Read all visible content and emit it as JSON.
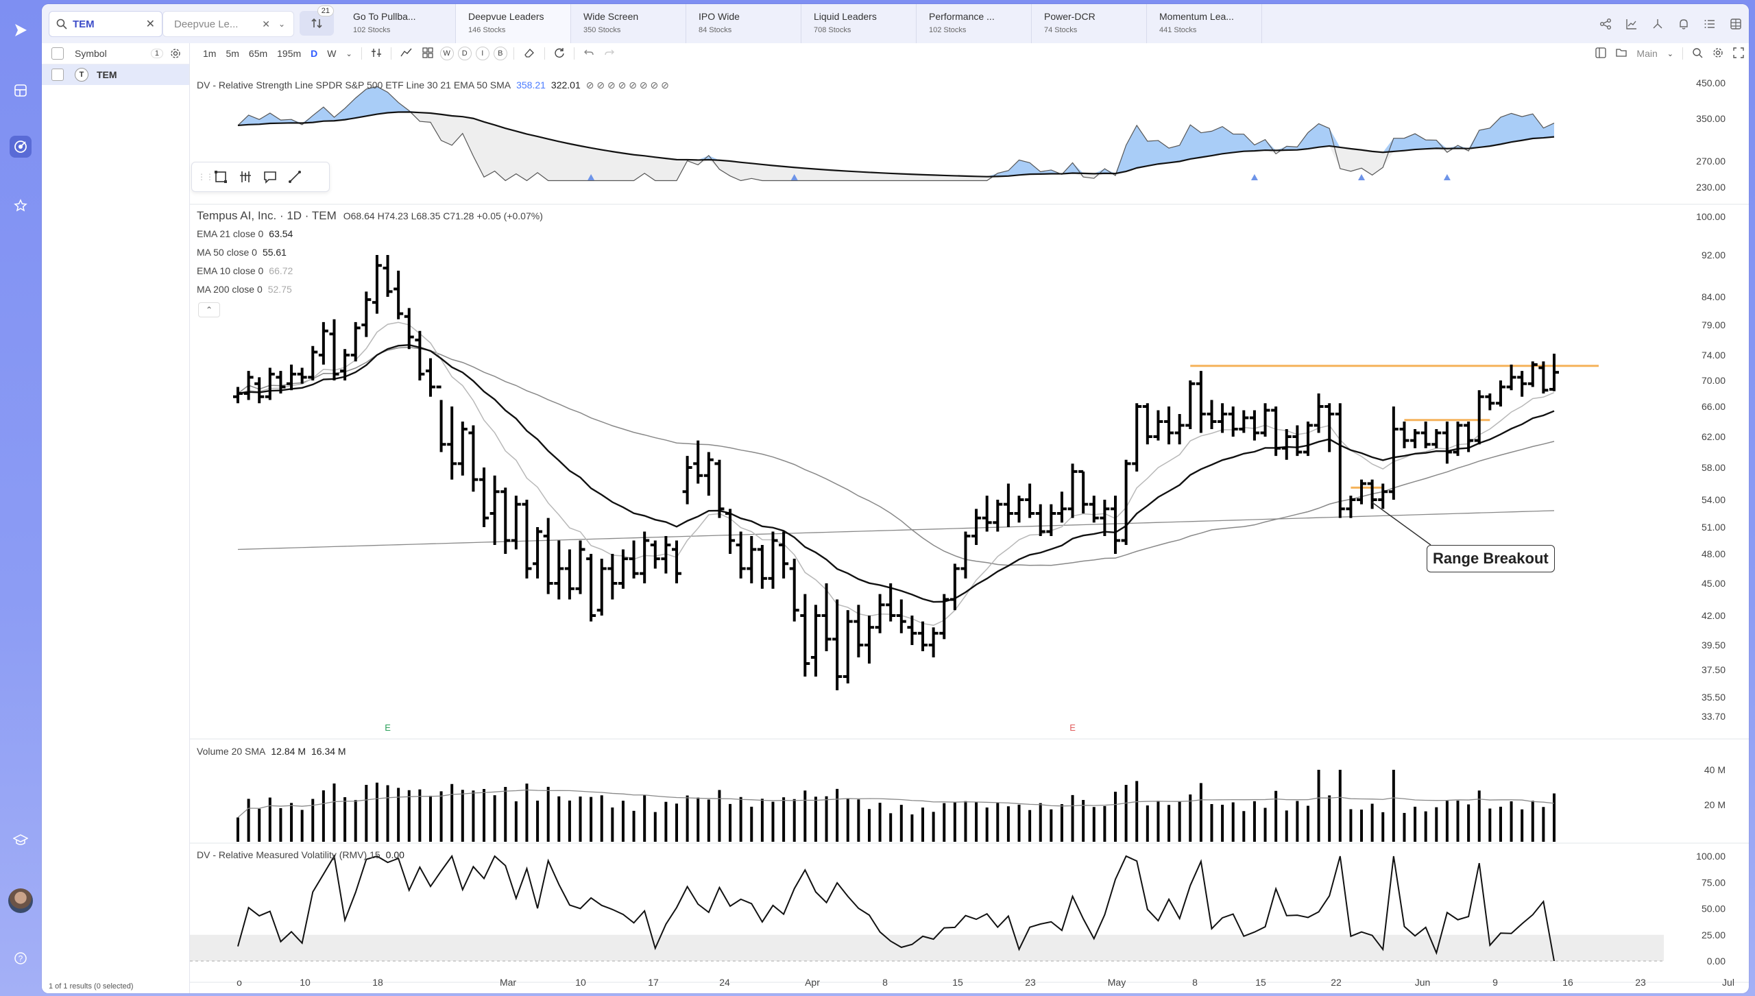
{
  "rail": {
    "icons": [
      "play-logo-icon",
      "grid-icon",
      "watchlist-icon",
      "star-icon",
      "graduation-icon",
      "avatar",
      "help-icon"
    ]
  },
  "search": {
    "value": "TEM"
  },
  "watchlist_selector": {
    "value": "Deepvue Le..."
  },
  "sort_badge": "21",
  "tabs": [
    {
      "name": "Go To Pullba...",
      "count": "102 Stocks"
    },
    {
      "name": "Deepvue Leaders",
      "count": "146 Stocks",
      "active": true
    },
    {
      "name": "Wide Screen",
      "count": "350 Stocks"
    },
    {
      "name": "IPO Wide",
      "count": "84 Stocks"
    },
    {
      "name": "Liquid Leaders",
      "count": "708 Stocks"
    },
    {
      "name": "Performance ...",
      "count": "102 Stocks"
    },
    {
      "name": "Power-DCR",
      "count": "74 Stocks"
    },
    {
      "name": "Momentum Lea...",
      "count": "441 Stocks"
    }
  ],
  "sidebar": {
    "header": "Symbol",
    "header_count": "1",
    "rows": [
      {
        "symbol": "TEM",
        "logo": "T"
      }
    ],
    "footer": "1 of 1 results (0 selected)"
  },
  "chart_toolbar": {
    "timeframes": [
      "1m",
      "5m",
      "65m",
      "195m",
      "D",
      "W"
    ],
    "active": "D",
    "freq": [
      "W",
      "D",
      "I",
      "B"
    ],
    "layout_label": "Main"
  },
  "rs_panel": {
    "label": "DV - Relative Strength Line SPDR S&P 500 ETF Line 30 21 EMA 50 SMA",
    "value1": "358.21",
    "value2": "322.01",
    "flags": "⊘ ⊘ ⊘ ⊘ ⊘ ⊘ ⊘ ⊘",
    "y_ticks": [
      "450.00",
      "350.00",
      "270.00",
      "230.00"
    ]
  },
  "price_panel": {
    "title": "Tempus AI, Inc. · 1D · TEM",
    "ohlc": "O68.64  H74.23  L68.35  C71.28  +0.05 (+0.07%)",
    "indicators": [
      {
        "label": "EMA 21 close 0",
        "value": "63.54"
      },
      {
        "label": "MA 50 close 0",
        "value": "55.61"
      },
      {
        "label": "EMA 10 close 0",
        "value": "66.72"
      },
      {
        "label": "MA 200 close 0",
        "value": "52.75"
      }
    ],
    "y_ticks": [
      "100.00",
      "92.00",
      "84.00",
      "79.00",
      "74.00",
      "70.00",
      "66.00",
      "62.00",
      "58.00",
      "54.00",
      "51.00",
      "48.00",
      "45.00",
      "42.00",
      "39.50",
      "37.50",
      "35.50",
      "33.70"
    ],
    "earnings_markers": [
      "E",
      "E"
    ],
    "annotation": "Range Breakout"
  },
  "volume_panel": {
    "label": "Volume 20 SMA",
    "value1": "12.84 M",
    "value2": "16.34 M",
    "y_ticks": [
      "40 M",
      "20 M"
    ]
  },
  "rmv_panel": {
    "label": "DV - Relative Measured Volatility (RMV) 15",
    "value": "0.00",
    "y_ticks": [
      "100.00",
      "75.00",
      "50.00",
      "25.00",
      "0.00"
    ]
  },
  "x_axis": [
    "o",
    "10",
    "18",
    "Mar",
    "10",
    "17",
    "24",
    "Apr",
    "8",
    "15",
    "23",
    "May",
    "8",
    "15",
    "22",
    "Jun",
    "9",
    "16",
    "23",
    "Jul"
  ],
  "chart_data": {
    "type": "ohlc",
    "symbol": "TEM",
    "interval": "1D",
    "last_close": 71.28,
    "bars": [
      [
        67.5,
        69.0,
        66.5,
        68.0
      ],
      [
        68.0,
        71.5,
        67.0,
        70.5
      ],
      [
        69.5,
        70.5,
        66.5,
        67.5
      ],
      [
        67.5,
        72.0,
        67.0,
        71.0
      ],
      [
        70.5,
        71.5,
        68.0,
        69.0
      ],
      [
        69.5,
        72.5,
        68.5,
        71.0
      ],
      [
        71.0,
        72.0,
        69.5,
        70.5
      ],
      [
        70.5,
        75.5,
        70.0,
        74.5
      ],
      [
        74.0,
        79.5,
        72.5,
        78.0
      ],
      [
        77.5,
        80.0,
        70.0,
        71.0
      ],
      [
        71.5,
        75.0,
        70.0,
        74.0
      ],
      [
        74.0,
        79.5,
        73.0,
        78.5
      ],
      [
        79.0,
        85.0,
        77.0,
        83.5
      ],
      [
        83.0,
        92.0,
        81.0,
        90.0
      ],
      [
        89.5,
        92.0,
        84.0,
        85.0
      ],
      [
        85.5,
        89.0,
        80.0,
        81.0
      ],
      [
        80.5,
        82.0,
        75.0,
        77.0
      ],
      [
        76.5,
        78.0,
        70.0,
        71.0
      ],
      [
        71.5,
        73.5,
        67.5,
        69.0
      ],
      [
        69.0,
        67.0,
        60.0,
        61.0
      ],
      [
        61.0,
        66.0,
        56.5,
        58.5
      ],
      [
        58.5,
        64.0,
        57.0,
        63.0
      ],
      [
        62.5,
        63.5,
        55.0,
        56.5
      ],
      [
        56.5,
        58.0,
        51.0,
        52.0
      ],
      [
        52.5,
        57.0,
        49.0,
        55.0
      ],
      [
        55.0,
        55.5,
        48.0,
        49.5
      ],
      [
        49.5,
        54.5,
        48.5,
        53.5
      ],
      [
        53.5,
        54.0,
        45.5,
        46.5
      ],
      [
        47.0,
        51.0,
        45.5,
        50.5
      ],
      [
        50.0,
        52.0,
        44.0,
        45.0
      ],
      [
        45.0,
        49.5,
        43.5,
        46.5
      ],
      [
        46.5,
        48.5,
        43.5,
        44.5
      ],
      [
        44.5,
        49.5,
        44.0,
        48.5
      ],
      [
        47.5,
        48.0,
        41.5,
        42.0
      ],
      [
        42.5,
        47.5,
        42.0,
        46.5
      ],
      [
        46.5,
        48.0,
        43.5,
        45.0
      ],
      [
        45.0,
        48.5,
        44.5,
        47.5
      ],
      [
        47.5,
        49.5,
        45.5,
        46.0
      ],
      [
        46.0,
        50.5,
        45.0,
        49.5
      ],
      [
        49.0,
        49.5,
        46.5,
        47.5
      ],
      [
        47.5,
        50.0,
        46.0,
        49.0
      ],
      [
        48.5,
        49.5,
        45.0,
        46.0
      ],
      [
        55.0,
        59.5,
        53.5,
        58.0
      ],
      [
        58.5,
        61.5,
        56.0,
        57.0
      ],
      [
        57.0,
        60.0,
        54.5,
        59.0
      ],
      [
        58.5,
        59.0,
        52.0,
        53.0
      ],
      [
        52.5,
        53.0,
        48.0,
        49.5
      ],
      [
        49.0,
        50.5,
        45.5,
        46.5
      ],
      [
        46.5,
        50.0,
        45.0,
        48.5
      ],
      [
        48.5,
        49.0,
        44.5,
        45.5
      ],
      [
        45.5,
        50.5,
        44.5,
        49.5
      ],
      [
        49.0,
        50.5,
        45.5,
        47.0
      ],
      [
        46.5,
        47.5,
        41.5,
        42.5
      ],
      [
        42.0,
        44.0,
        37.0,
        38.0
      ],
      [
        38.5,
        43.0,
        37.0,
        42.0
      ],
      [
        42.0,
        45.0,
        39.0,
        40.0
      ],
      [
        40.0,
        43.5,
        36.0,
        37.0
      ],
      [
        37.0,
        42.5,
        36.5,
        41.5
      ],
      [
        41.5,
        43.0,
        38.5,
        39.5
      ],
      [
        39.5,
        42.0,
        38.0,
        41.0
      ],
      [
        41.0,
        44.0,
        40.5,
        43.0
      ],
      [
        43.0,
        45.0,
        41.5,
        42.0
      ],
      [
        42.0,
        43.5,
        40.5,
        41.5
      ],
      [
        41.0,
        42.0,
        39.5,
        40.5
      ],
      [
        40.5,
        41.5,
        39.0,
        39.5
      ],
      [
        39.5,
        41.0,
        38.5,
        40.5
      ],
      [
        40.5,
        44.0,
        40.0,
        43.5
      ],
      [
        43.5,
        47.0,
        42.5,
        46.5
      ],
      [
        46.5,
        50.5,
        45.5,
        50.0
      ],
      [
        50.0,
        53.0,
        49.0,
        52.0
      ],
      [
        52.0,
        54.5,
        50.5,
        51.5
      ],
      [
        51.5,
        54.0,
        50.5,
        53.5
      ],
      [
        53.5,
        56.0,
        51.0,
        52.5
      ],
      [
        52.5,
        54.5,
        51.5,
        54.0
      ],
      [
        54.0,
        56.0,
        52.0,
        52.5
      ],
      [
        52.5,
        53.5,
        50.0,
        50.5
      ],
      [
        50.5,
        53.5,
        50.0,
        52.5
      ],
      [
        52.5,
        55.0,
        51.5,
        53.0
      ],
      [
        53.0,
        58.5,
        52.0,
        57.5
      ],
      [
        57.5,
        57.5,
        52.5,
        53.5
      ],
      [
        53.5,
        54.5,
        51.5,
        52.0
      ],
      [
        52.0,
        54.0,
        50.0,
        53.0
      ],
      [
        53.0,
        54.5,
        48.0,
        49.5
      ],
      [
        49.5,
        59.0,
        49.0,
        58.5
      ],
      [
        58.5,
        66.5,
        57.5,
        66.0
      ],
      [
        66.0,
        66.5,
        61.0,
        62.0
      ],
      [
        62.0,
        65.5,
        61.5,
        64.0
      ],
      [
        64.0,
        66.0,
        61.0,
        62.5
      ],
      [
        62.5,
        65.0,
        61.0,
        63.5
      ],
      [
        63.5,
        70.0,
        63.0,
        69.5
      ],
      [
        69.5,
        71.5,
        62.5,
        65.0
      ],
      [
        65.0,
        67.0,
        63.0,
        64.0
      ],
      [
        64.0,
        66.5,
        62.5,
        65.0
      ],
      [
        65.0,
        66.0,
        62.0,
        63.0
      ],
      [
        63.0,
        65.5,
        62.5,
        64.5
      ],
      [
        64.5,
        65.5,
        61.5,
        62.5
      ],
      [
        62.5,
        66.5,
        62.0,
        65.5
      ],
      [
        65.5,
        66.0,
        59.5,
        60.5
      ],
      [
        60.5,
        63.0,
        59.0,
        62.0
      ],
      [
        62.0,
        63.5,
        59.5,
        60.0
      ],
      [
        60.0,
        64.0,
        59.5,
        63.5
      ],
      [
        63.5,
        68.0,
        62.5,
        66.0
      ],
      [
        66.0,
        66.5,
        60.0,
        65.0
      ],
      [
        65.0,
        66.5,
        52.0,
        53.0
      ],
      [
        53.0,
        54.5,
        52.0,
        54.0
      ],
      [
        54.0,
        56.5,
        53.5,
        56.0
      ],
      [
        56.0,
        56.5,
        53.0,
        54.0
      ],
      [
        54.0,
        56.0,
        53.0,
        55.0
      ],
      [
        55.0,
        66.0,
        54.0,
        63.0
      ],
      [
        63.0,
        64.0,
        60.5,
        61.5
      ],
      [
        61.5,
        63.0,
        60.5,
        62.5
      ],
      [
        62.5,
        64.0,
        60.5,
        61.0
      ],
      [
        61.0,
        63.0,
        60.5,
        62.5
      ],
      [
        62.5,
        64.0,
        58.5,
        60.0
      ],
      [
        60.0,
        64.0,
        59.5,
        63.5
      ],
      [
        63.5,
        64.0,
        60.0,
        61.5
      ],
      [
        61.5,
        68.5,
        61.0,
        67.5
      ],
      [
        67.5,
        68.0,
        65.5,
        66.5
      ],
      [
        66.5,
        70.0,
        66.0,
        69.0
      ],
      [
        69.0,
        72.5,
        68.5,
        70.5
      ],
      [
        70.5,
        71.5,
        67.5,
        69.5
      ],
      [
        69.5,
        73.0,
        69.0,
        72.5
      ],
      [
        72.0,
        73.0,
        68.0,
        68.5
      ],
      [
        68.64,
        74.23,
        68.35,
        71.28
      ]
    ],
    "volume_in_millions_min_max": [
      0,
      45
    ],
    "rmv_range": [
      0,
      100
    ],
    "horizontal_levels": [
      72.3,
      64.2,
      55.5
    ]
  }
}
